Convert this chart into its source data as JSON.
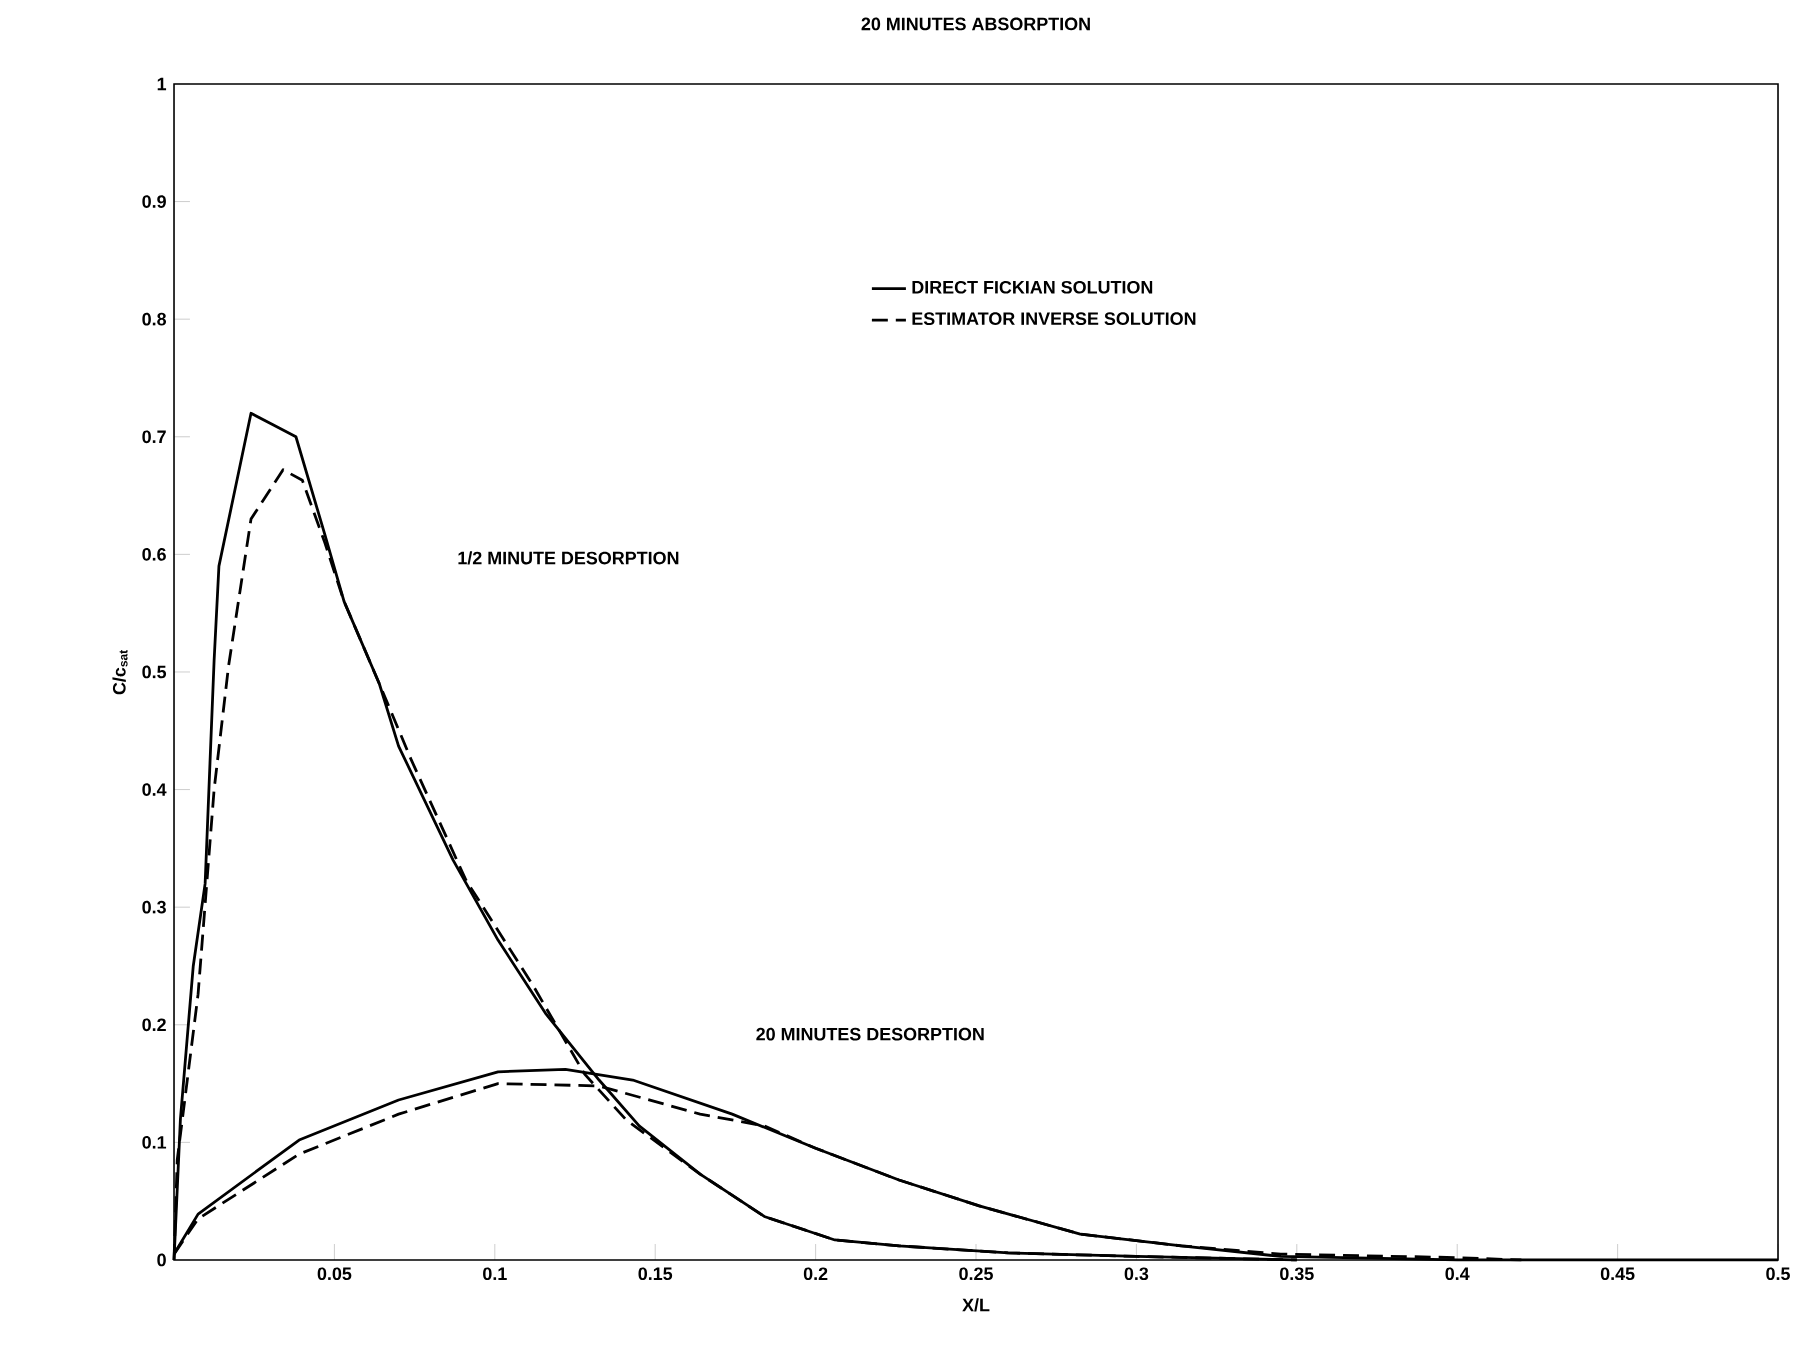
{
  "chart_data": {
    "type": "line",
    "title": "20 MINUTES ABSORPTION",
    "xlabel": "X/L",
    "ylabel": "C/c$_{sat}$",
    "xlim": [
      0,
      0.5
    ],
    "ylim": [
      0,
      1
    ],
    "xticks": [
      0.05,
      0.1,
      0.15,
      0.2,
      0.25,
      0.3,
      0.35,
      0.4,
      0.45,
      0.5
    ],
    "yticks": [
      0,
      0.1,
      0.2,
      0.3,
      0.4,
      0.5,
      0.6,
      0.7,
      0.8,
      0.9,
      1
    ],
    "legend": "top right",
    "grid": false,
    "marker": "none",
    "annotations": [
      "1/2 MINUTE DESORPTION",
      "20 MINUTES DESORPTION"
    ],
    "series": [
      {
        "name": "DIRECT FICKIAN SOLUTION",
        "color": "#000000",
        "line_style": "solid",
        "x": [
          0,
          0.002,
          0.006,
          0.0097,
          0.0125,
          0.014,
          0.024,
          0.031,
          0.038,
          0.047,
          0.053,
          0.064,
          0.07,
          0.087,
          0.101,
          0.116,
          0.1325,
          0.145,
          0.164,
          0.184,
          0.206,
          0.226,
          0.26,
          0.3,
          0.35
        ],
        "values": [
          0,
          0.12,
          0.25,
          0.32,
          0.51,
          0.59,
          0.72,
          0.71,
          0.7,
          0.617,
          0.56,
          0.49,
          0.437,
          0.34,
          0.272,
          0.209,
          0.153,
          0.114,
          0.073,
          0.037,
          0.017,
          0.012,
          0.006,
          0.003,
          0
        ]
      },
      {
        "name": "ESTIMATOR INVERSE SOLUTION",
        "color": "#000000",
        "line_style": "dashed",
        "x": [
          0,
          0.001,
          0.0075,
          0.0125,
          0.017,
          0.024,
          0.034,
          0.04,
          0.047,
          0.053,
          0.064,
          0.074,
          0.091,
          0.112,
          0.128,
          0.141,
          0.164,
          0.184,
          0.206,
          0.226,
          0.26,
          0.3,
          0.35
        ],
        "values": [
          0,
          0.085,
          0.226,
          0.4,
          0.505,
          0.63,
          0.672,
          0.663,
          0.61,
          0.56,
          0.49,
          0.425,
          0.323,
          0.233,
          0.158,
          0.119,
          0.073,
          0.037,
          0.017,
          0.012,
          0.006,
          0.003,
          0
        ]
      },
      {
        "color": "#000000",
        "line_style": "solid",
        "x": [
          0,
          0.0075,
          0.039,
          0.07,
          0.101,
          0.122,
          0.143,
          0.174,
          0.2,
          0.226,
          0.251,
          0.2825,
          0.314,
          0.345,
          0.4,
          0.5
        ],
        "values": [
          0.005,
          0.039,
          0.102,
          0.136,
          0.16,
          0.162,
          0.153,
          0.124,
          0.095,
          0.068,
          0.046,
          0.022,
          0.012,
          0.003,
          0,
          0
        ]
      },
      {
        "color": "#000000",
        "line_style": "dashed",
        "x": [
          0,
          0.0075,
          0.039,
          0.07,
          0.101,
          0.1325,
          0.164,
          0.184,
          0.2,
          0.226,
          0.251,
          0.2825,
          0.314,
          0.345,
          0.4,
          0.42
        ],
        "values": [
          0.005,
          0.035,
          0.09,
          0.124,
          0.15,
          0.148,
          0.124,
          0.114,
          0.095,
          0.068,
          0.046,
          0.022,
          0.012,
          0.005,
          0.002,
          0
        ]
      }
    ]
  }
}
